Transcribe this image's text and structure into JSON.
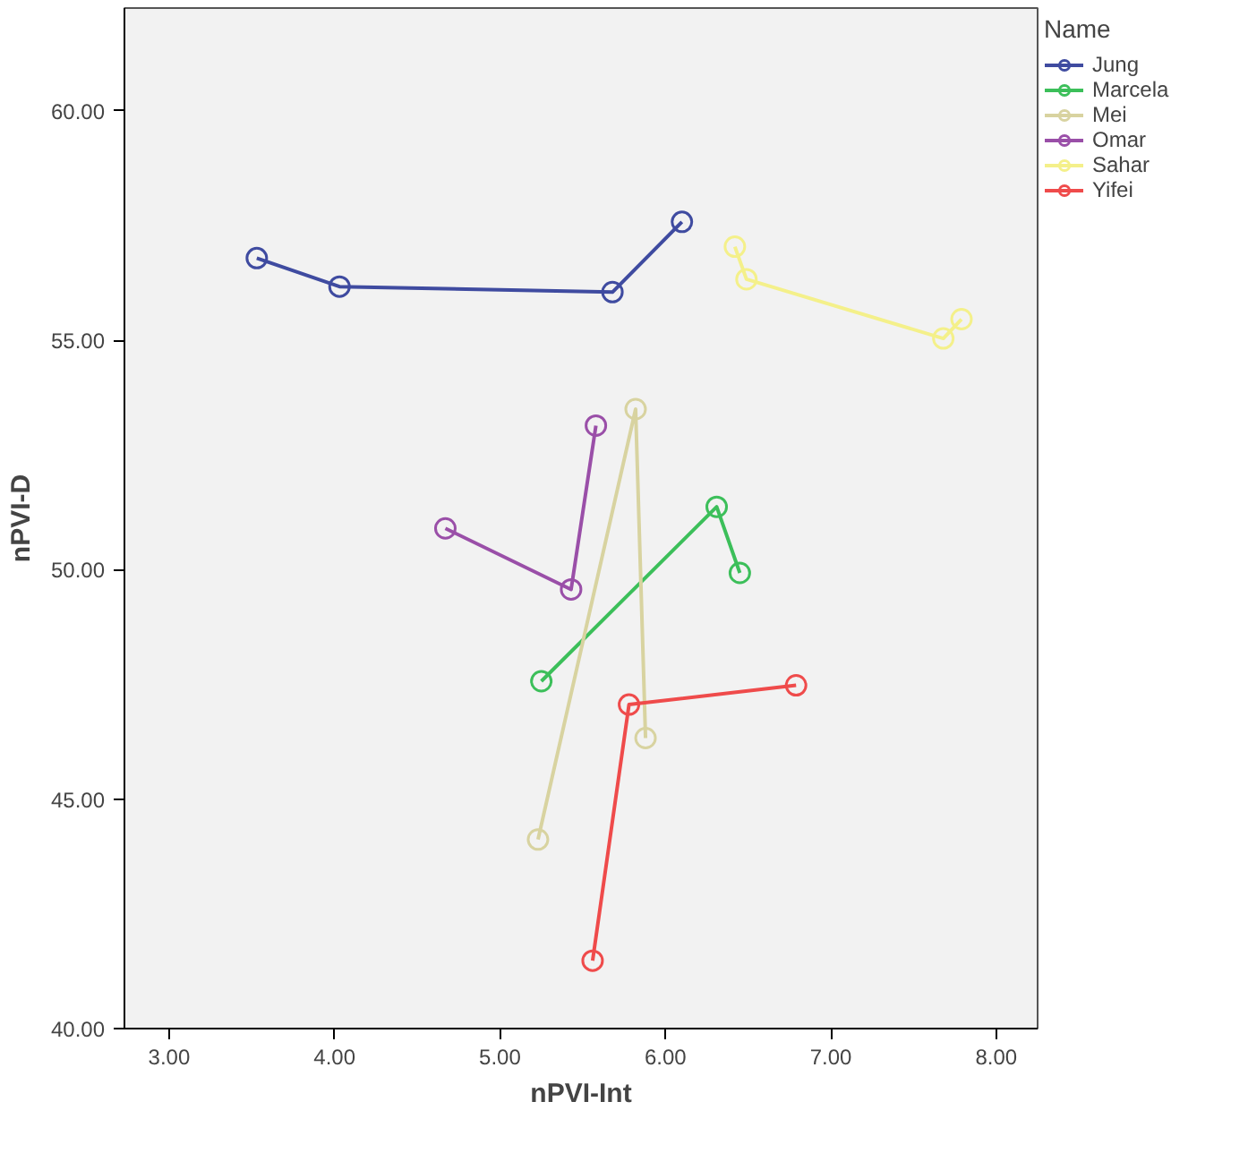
{
  "chart_data": {
    "type": "line",
    "xlabel": "nPVI-Int",
    "ylabel": "nPVI-D",
    "legend_title": "Name",
    "legend": "right",
    "grid": false,
    "marker": "circle",
    "line_style": "solid",
    "xlim": [
      2.73,
      8.25
    ],
    "ylim": [
      40,
      62.24
    ],
    "xticks": [
      {
        "value": 3,
        "label": "3.00"
      },
      {
        "value": 4,
        "label": "4.00"
      },
      {
        "value": 5,
        "label": "5.00"
      },
      {
        "value": 6,
        "label": "6.00"
      },
      {
        "value": 7,
        "label": "7.00"
      },
      {
        "value": 8,
        "label": "8.00"
      }
    ],
    "yticks": [
      {
        "value": 40,
        "label": "40.00"
      },
      {
        "value": 45,
        "label": "45.00"
      },
      {
        "value": 50,
        "label": "50.00"
      },
      {
        "value": 55,
        "label": "55.00"
      },
      {
        "value": 60,
        "label": "60.00"
      }
    ],
    "series": [
      {
        "name": "Jung",
        "color": "#3f4ba0",
        "x": [
          3.53,
          4.03,
          5.68,
          6.1
        ],
        "values": [
          56.79,
          56.17,
          56.05,
          57.58
        ]
      },
      {
        "name": "Marcela",
        "color": "#3cbf5a",
        "x": [
          5.25,
          6.31,
          6.45
        ],
        "values": [
          47.57,
          51.37,
          49.93
        ]
      },
      {
        "name": "Mei",
        "color": "#d8d3a0",
        "x": [
          5.23,
          5.82,
          5.88
        ],
        "values": [
          44.12,
          53.5,
          46.33
        ]
      },
      {
        "name": "Omar",
        "color": "#9a4fa8",
        "x": [
          4.67,
          5.43,
          5.58
        ],
        "values": [
          50.9,
          49.57,
          53.14
        ]
      },
      {
        "name": "Sahar",
        "color": "#f4f08a",
        "x": [
          6.42,
          6.49,
          7.68,
          7.79
        ],
        "values": [
          57.04,
          56.33,
          55.04,
          55.46
        ]
      },
      {
        "name": "Yifei",
        "color": "#ef4b4b",
        "x": [
          5.56,
          5.78,
          6.79
        ],
        "values": [
          41.48,
          47.06,
          47.48
        ]
      }
    ]
  }
}
